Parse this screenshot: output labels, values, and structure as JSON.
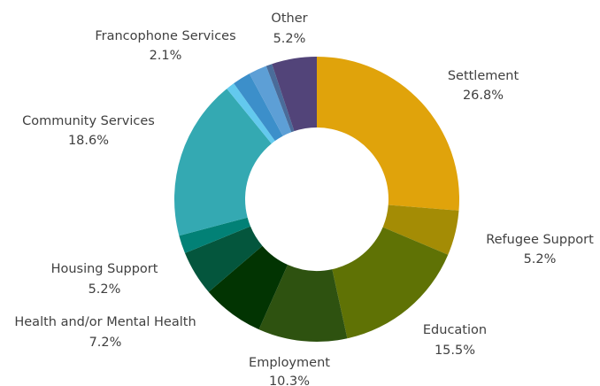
{
  "chart_data": {
    "type": "pie",
    "title": "",
    "categories": [
      "Settlement",
      "Refugee Support",
      "Education",
      "Employment",
      "Health and/or Mental Health",
      "Housing Support",
      "",
      "Community Services",
      "",
      "",
      "Francophone Services",
      "",
      "Other"
    ],
    "values": [
      26.8,
      5.2,
      15.5,
      10.3,
      7.2,
      5.2,
      2.1,
      18.6,
      1.0,
      2.1,
      2.1,
      0.7,
      5.2
    ],
    "value_labels": [
      "26.8%",
      "5.2%",
      "15.5%",
      "10.3%",
      "7.2%",
      "5.2%",
      "",
      "18.6%",
      "",
      "",
      "2.1%",
      "",
      "5.2%"
    ],
    "colors": [
      "#E0A30B",
      "#A48C05",
      "#5F7205",
      "#2E5210",
      "#023402",
      "#04563D",
      "#028176",
      "#34A9B2",
      "#63C9EE",
      "#3C8FCA",
      "#5D9FD6",
      "#4A6C9A",
      "#524479"
    ],
    "legend": "none"
  }
}
